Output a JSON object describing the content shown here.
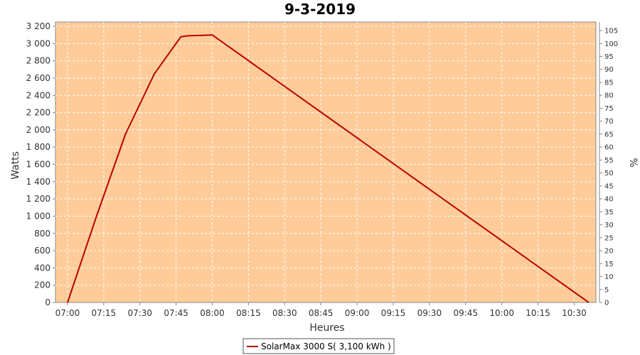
{
  "chart_data": {
    "type": "line",
    "title": "9-3-2019",
    "xlabel": "Heures",
    "ylabel": "Watts",
    "y2label": "%",
    "x_ticks": [
      "07:00",
      "07:15",
      "07:30",
      "07:45",
      "08:00",
      "08:15",
      "08:30",
      "08:45",
      "09:00",
      "09:15",
      "09:30",
      "09:45",
      "10:00",
      "10:15",
      "10:30"
    ],
    "xlim": [
      "06:55",
      "10:39"
    ],
    "ylim": [
      0,
      3250
    ],
    "y_ticks": [
      0,
      200,
      400,
      600,
      800,
      1000,
      1200,
      1400,
      1600,
      1800,
      2000,
      2200,
      2400,
      2600,
      2800,
      3000,
      3200
    ],
    "y_tick_labels": [
      "0",
      "200",
      "400",
      "600",
      "800",
      "1 000",
      "1 200",
      "1 400",
      "1 600",
      "1 800",
      "2 000",
      "2 200",
      "2 400",
      "2 600",
      "2 800",
      "3 000",
      "3 200"
    ],
    "y2lim": [
      0,
      108.3
    ],
    "y2_ticks": [
      0,
      5,
      10,
      15,
      20,
      25,
      30,
      35,
      40,
      45,
      50,
      55,
      60,
      65,
      70,
      75,
      80,
      85,
      90,
      95,
      100,
      105
    ],
    "grid": true,
    "background_color": "#ffcc99",
    "line_color": "#bb0000",
    "legend_position": "bottom-center",
    "series": [
      {
        "name": "SolarMax 3000 S( 3,100 kWh )",
        "x": [
          "07:00",
          "07:12",
          "07:24",
          "07:36",
          "07:47",
          "07:50",
          "07:56",
          "08:00",
          "10:34",
          "10:36"
        ],
        "values": [
          0,
          1000,
          1950,
          2650,
          3080,
          3090,
          3095,
          3100,
          40,
          0
        ]
      }
    ]
  }
}
